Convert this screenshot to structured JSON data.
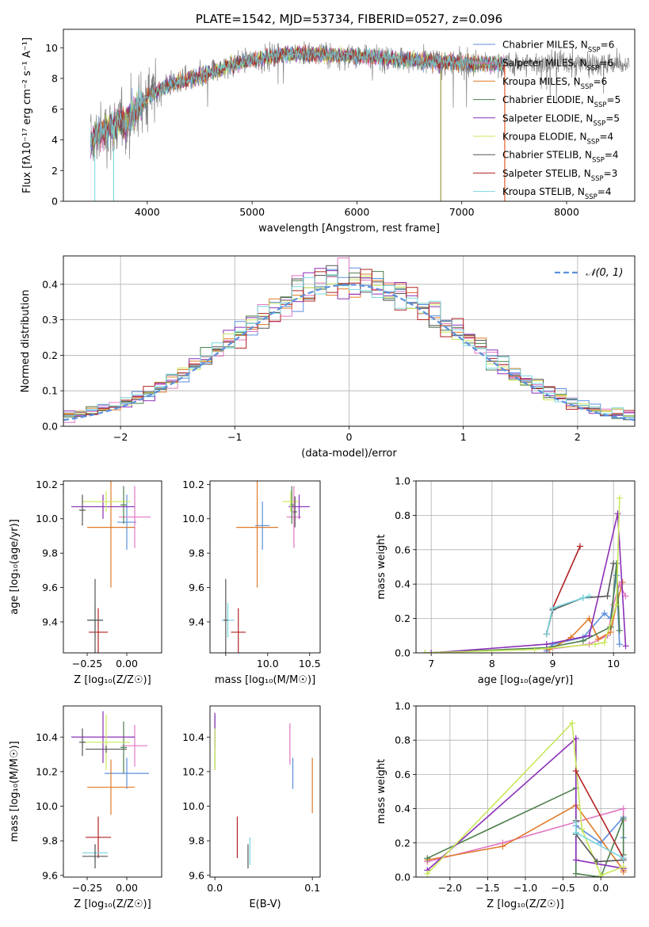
{
  "series_names": [
    "Chabrier MILES, N_SSP=6",
    "Salpeter MILES, N_SSP=6",
    "Kroupa MILES, N_SSP=6",
    "Chabrier ELODIE, N_SSP=5",
    "Salpeter ELODIE, N_SSP=5",
    "Kroupa ELODIE, N_SSP=4",
    "Chabrier STELIB, N_SSP=4",
    "Salpeter STELIB, N_SSP=3",
    "Kroupa STELIB, N_SSP=4"
  ],
  "series_colors": [
    "#5b8fdd",
    "#e377c2",
    "#e07b2a",
    "#4c7f4c",
    "#8b2fb8",
    "#c8e85a",
    "#555555",
    "#b22222",
    "#76d7e0"
  ],
  "chart_data": [
    {
      "id": "spectrum",
      "type": "line",
      "title": "PLATE=1542, MJD=53734, FIBERID=0527, z=0.096",
      "xlabel": "wavelength [Angstrom, rest frame]",
      "ylabel": "Flux [fλ10⁻¹⁷ erg cm⁻² s⁻¹ A⁻¹]",
      "xlim": [
        3200,
        8650
      ],
      "ylim": [
        0,
        11.2
      ],
      "xticks": [
        4000,
        5000,
        6000,
        7000,
        8000
      ],
      "yticks": [
        0,
        2,
        4,
        6,
        8,
        10
      ],
      "legend": [
        "Chabrier MILES, N",
        "Salpeter MILES, N",
        "Kroupa MILES, N",
        "Chabrier ELODIE, N",
        "Salpeter ELODIE, N",
        "Kroupa ELODIE, N",
        "Chabrier STELIB, N",
        "Salpeter STELIB, N",
        "Kroupa STELIB, N"
      ],
      "legend_sub": "SSP",
      "legend_tail": [
        "=6",
        "=6",
        "=6",
        "=5",
        "=5",
        "=4",
        "=4",
        "=3",
        "=4"
      ],
      "legend_placement": "top-right",
      "continuum": [
        [
          3450,
          3.8
        ],
        [
          3600,
          4.6
        ],
        [
          3800,
          5.3
        ],
        [
          4000,
          6.8
        ],
        [
          4200,
          7.6
        ],
        [
          4500,
          8.1
        ],
        [
          4800,
          8.9
        ],
        [
          5000,
          9.2
        ],
        [
          5300,
          9.6
        ],
        [
          5600,
          9.6
        ],
        [
          5900,
          9.5
        ],
        [
          6200,
          9.4
        ],
        [
          6500,
          9.2
        ],
        [
          6800,
          9.1
        ],
        [
          7100,
          9.0
        ],
        [
          7400,
          8.9
        ],
        [
          7700,
          9.0
        ],
        [
          8000,
          9.1
        ],
        [
          8300,
          9.0
        ],
        [
          8600,
          8.9
        ]
      ],
      "data_xrange": [
        3460,
        8600
      ],
      "model_xrange": [
        3460,
        7410
      ]
    },
    {
      "id": "residuals",
      "type": "histogram",
      "xlabel": "(data-model)/error",
      "ylabel": "Normed distribution",
      "xlim": [
        -2.5,
        2.5
      ],
      "ylim": [
        0,
        0.48
      ],
      "xticks": [
        -2,
        -1,
        0,
        1,
        2
      ],
      "xtick_labels": [
        "−2",
        "−1",
        "0",
        "1",
        "2"
      ],
      "yticks": [
        0,
        0.1,
        0.2,
        0.3,
        0.4
      ],
      "ytick_labels": [
        "0.0",
        "0.1",
        "0.2",
        "0.3",
        "0.4"
      ],
      "bin_width": 0.1,
      "bin_range": [
        -2.5,
        2.5
      ],
      "reference_curve": "Normal(0,1)",
      "reference_label": "𝒩(0, 1)",
      "legend_placement": "top-right"
    },
    {
      "id": "age_vs_Z",
      "type": "scatter",
      "xlabel": "Z [log₁₀(Z/Z☉)]",
      "ylabel": "age  [log₁₀(age/yr)]",
      "xlim": [
        -0.4,
        0.22
      ],
      "ylim": [
        9.22,
        10.22
      ],
      "xticks": [
        -0.25,
        0.0
      ],
      "xtick_labels": [
        "−0.25",
        "0.00"
      ],
      "yticks": [
        9.4,
        9.6,
        9.8,
        10.0,
        10.2
      ],
      "ytick_labels": [
        "9.4",
        "9.6",
        "9.8",
        "10.0",
        "10.2"
      ],
      "points": [
        {
          "s": 0,
          "x": 0.0,
          "xe": 0.06,
          "y": 9.98,
          "ye": 0.16
        },
        {
          "s": 1,
          "x": 0.05,
          "xe": 0.1,
          "y": 10.01,
          "ye": 0.18
        },
        {
          "s": 2,
          "x": -0.1,
          "xe": 0.15,
          "y": 9.95,
          "ye": 0.35
        },
        {
          "s": 3,
          "x": -0.02,
          "xe": 0.02,
          "y": 10.08,
          "ye": 0.11
        },
        {
          "s": 4,
          "x": -0.15,
          "xe": 0.2,
          "y": 10.07,
          "ye": 0.07
        },
        {
          "s": 5,
          "x": -0.13,
          "xe": 0.15,
          "y": 10.1,
          "ye": 0.06
        },
        {
          "s": 6,
          "x": -0.28,
          "xe": 0.02,
          "y": 10.05,
          "ye": 0.09
        },
        {
          "s": 7,
          "x": -0.18,
          "xe": 0.06,
          "y": 9.34,
          "ye": 0.14
        },
        {
          "s": 8,
          "x": -0.2,
          "xe": 0.05,
          "y": 9.41,
          "ye": 0.1
        },
        {
          "s": 6,
          "x": -0.2,
          "xe": 0.05,
          "y": 9.41,
          "ye": 0.24
        }
      ]
    },
    {
      "id": "age_vs_mass",
      "type": "scatter",
      "xlabel": "mass [log₁₀(M/M☉)]",
      "ylabel": "",
      "xlim": [
        9.55,
        10.6
      ],
      "ylim": [
        9.22,
        10.22
      ],
      "xticks": [
        9.7,
        10.1,
        10.5
      ],
      "xtick_labels": [
        "",
        "10.0",
        "10.5"
      ],
      "xticks_full": [
        10.0,
        10.5
      ],
      "yticks": [
        9.4,
        9.6,
        9.8,
        10.0,
        10.2
      ],
      "ytick_labels": [
        "9.4",
        "9.6",
        "9.8",
        "10.0",
        "10.2"
      ],
      "points": [
        {
          "s": 0,
          "x": 10.05,
          "xe": 0.07,
          "y": 9.96,
          "ye": 0.14
        },
        {
          "s": 1,
          "x": 10.35,
          "xe": 0.07,
          "y": 10.01,
          "ye": 0.18
        },
        {
          "s": 2,
          "x": 10.0,
          "xe": 0.2,
          "y": 9.95,
          "ye": 0.35
        },
        {
          "s": 3,
          "x": 10.33,
          "xe": 0.02,
          "y": 10.08,
          "ye": 0.11
        },
        {
          "s": 4,
          "x": 10.4,
          "xe": 0.1,
          "y": 10.07,
          "ye": 0.07
        },
        {
          "s": 5,
          "x": 10.32,
          "xe": 0.08,
          "y": 10.1,
          "ye": 0.06
        },
        {
          "s": 6,
          "x": 10.36,
          "xe": 0.02,
          "y": 10.04,
          "ye": 0.09
        },
        {
          "s": 7,
          "x": 9.82,
          "xe": 0.07,
          "y": 9.34,
          "ye": 0.14
        },
        {
          "s": 8,
          "x": 9.72,
          "xe": 0.06,
          "y": 9.41,
          "ye": 0.1
        },
        {
          "s": 6,
          "x": 9.7,
          "xe": 0.02,
          "y": 9.41,
          "ye": 0.24
        }
      ]
    },
    {
      "id": "weight_vs_age",
      "type": "line",
      "xlabel": "age  [log₁₀(age/yr)]",
      "ylabel": "mass weight",
      "xlim": [
        6.75,
        10.35
      ],
      "ylim": [
        0,
        1.0
      ],
      "xticks": [
        7,
        8,
        9,
        10
      ],
      "xtick_labels": [
        "7",
        "8",
        "9",
        "10"
      ],
      "yticks": [
        0,
        0.2,
        0.4,
        0.6,
        0.8,
        1.0
      ],
      "ytick_labels": [
        "0.0",
        "0.2",
        "0.4",
        "0.6",
        "0.8",
        "1.0"
      ],
      "series": [
        {
          "s": 0,
          "x": [
            8.9,
            9.0,
            9.5,
            9.85,
            9.95,
            10.05,
            10.1
          ],
          "y": [
            0.01,
            0.05,
            0.09,
            0.23,
            0.2,
            0.45,
            0.05
          ]
        },
        {
          "s": 1,
          "x": [
            8.9,
            9.6,
            9.9,
            10.0,
            10.1,
            10.2
          ],
          "y": [
            0.02,
            0.05,
            0.1,
            0.28,
            0.4,
            0.33
          ]
        },
        {
          "s": 2,
          "x": [
            8.95,
            9.3,
            9.6,
            9.75,
            9.95,
            10.05,
            10.15
          ],
          "y": [
            0.02,
            0.09,
            0.2,
            0.08,
            0.12,
            0.28,
            0.41
          ]
        },
        {
          "s": 3,
          "x": [
            6.9,
            8.9,
            9.5,
            9.95,
            10.05,
            10.1
          ],
          "y": [
            0.0,
            0.03,
            0.07,
            0.15,
            0.52,
            0.13
          ]
        },
        {
          "s": 4,
          "x": [
            7.0,
            8.9,
            9.6,
            10.07,
            10.2
          ],
          "y": [
            0.0,
            0.05,
            0.1,
            0.81,
            0.04
          ]
        },
        {
          "s": 5,
          "x": [
            6.9,
            8.7,
            9.7,
            9.85,
            10.05,
            10.1
          ],
          "y": [
            0.0,
            0.02,
            0.05,
            0.06,
            0.28,
            0.9
          ]
        },
        {
          "s": 6,
          "x": [
            8.9,
            9.0,
            9.5,
            9.9,
            10.0
          ],
          "y": [
            0.11,
            0.25,
            0.32,
            0.33,
            0.52
          ]
        },
        {
          "s": 7,
          "x": [
            8.9,
            9.0,
            9.45
          ],
          "y": [
            0.11,
            0.26,
            0.62
          ]
        },
        {
          "s": 8,
          "x": [
            8.9,
            9.0,
            9.5,
            9.6
          ],
          "y": [
            0.11,
            0.26,
            0.32,
            0.33
          ]
        }
      ]
    },
    {
      "id": "mass_vs_Z",
      "type": "scatter",
      "xlabel": "Z [log₁₀(Z/Z☉)]",
      "ylabel": "mass [log₁₀(M/M☉)]",
      "xlim": [
        -0.4,
        0.22
      ],
      "ylim": [
        9.59,
        10.58
      ],
      "xticks": [
        -0.25,
        0.0
      ],
      "xtick_labels": [
        "−0.25",
        "0.00"
      ],
      "yticks": [
        9.6,
        9.8,
        10.0,
        10.2,
        10.4
      ],
      "ytick_labels": [
        "9.6",
        "9.8",
        "10.0",
        "10.2",
        "10.4"
      ],
      "points": [
        {
          "s": 0,
          "x": 0.0,
          "xe": 0.14,
          "y": 10.19,
          "ye": 0.09
        },
        {
          "s": 1,
          "x": 0.05,
          "xe": 0.08,
          "y": 10.35,
          "ye": 0.12
        },
        {
          "s": 2,
          "x": -0.1,
          "xe": 0.15,
          "y": 10.11,
          "ye": 0.16
        },
        {
          "s": 3,
          "x": -0.02,
          "xe": 0.02,
          "y": 10.34,
          "ye": 0.15
        },
        {
          "s": 4,
          "x": -0.15,
          "xe": 0.2,
          "y": 10.4,
          "ye": 0.15
        },
        {
          "s": 5,
          "x": -0.13,
          "xe": 0.15,
          "y": 10.37,
          "ye": 0.16
        },
        {
          "s": 6,
          "x": -0.28,
          "xe": 0.02,
          "y": 10.37,
          "ye": 0.08
        },
        {
          "s": 6,
          "x": -0.13,
          "xe": 0.13,
          "y": 10.33,
          "ye": 0.02
        },
        {
          "s": 7,
          "x": -0.18,
          "xe": 0.08,
          "y": 9.82,
          "ye": 0.12
        },
        {
          "s": 8,
          "x": -0.2,
          "xe": 0.08,
          "y": 9.73,
          "ye": 0.05
        },
        {
          "s": 6,
          "x": -0.2,
          "xe": 0.08,
          "y": 9.71,
          "ye": 0.07
        }
      ]
    },
    {
      "id": "mass_vs_ebv",
      "type": "scatter",
      "xlabel": "E(B-V)",
      "ylabel": "",
      "xlim": [
        -0.005,
        0.108
      ],
      "ylim": [
        9.59,
        10.58
      ],
      "xticks": [
        0.0,
        0.1
      ],
      "xtick_labels": [
        "0.0",
        "0.1"
      ],
      "yticks": [
        9.6,
        9.8,
        10.0,
        10.2,
        10.4
      ],
      "ytick_labels": [
        "9.6",
        "9.8",
        "10.0",
        "10.2",
        "10.4"
      ],
      "points": [
        {
          "s": 0,
          "x": 0.08,
          "xe": 0.0,
          "y": 10.19,
          "ye": 0.09
        },
        {
          "s": 1,
          "x": 0.077,
          "xe": 0.0,
          "y": 10.36,
          "ye": 0.12
        },
        {
          "s": 2,
          "x": 0.1,
          "xe": 0.0,
          "y": 10.12,
          "ye": 0.16
        },
        {
          "s": 3,
          "x": 0.0,
          "xe": 0.0,
          "y": 10.37,
          "ye": 0.16
        },
        {
          "s": 4,
          "x": 0.0,
          "xe": 0.0,
          "y": 10.44,
          "ye": 0.1
        },
        {
          "s": 5,
          "x": 0.0,
          "xe": 0.0,
          "y": 10.33,
          "ye": 0.12
        },
        {
          "s": 7,
          "x": 0.023,
          "xe": 0.0,
          "y": 9.82,
          "ye": 0.12
        },
        {
          "s": 8,
          "x": 0.036,
          "xe": 0.0,
          "y": 9.74,
          "ye": 0.08
        },
        {
          "s": 6,
          "x": 0.034,
          "xe": 0.0,
          "y": 9.71,
          "ye": 0.07
        }
      ]
    },
    {
      "id": "weight_vs_Z",
      "type": "line",
      "xlabel": "Z [log₁₀(Z/Z☉)]",
      "ylabel": "mass weight",
      "xlim": [
        -2.45,
        0.45
      ],
      "ylim": [
        0,
        1.0
      ],
      "xticks": [
        -2.0,
        -1.5,
        -1.0,
        -0.5,
        0.0
      ],
      "xtick_labels": [
        "−2.0",
        "−1.5",
        "−1.0",
        "−0.5",
        "0.0"
      ],
      "yticks": [
        0,
        0.2,
        0.4,
        0.6,
        0.8,
        1.0
      ],
      "ytick_labels": [
        "0.0",
        "0.2",
        "0.4",
        "0.6",
        "0.8",
        "1.0"
      ],
      "series": [
        {
          "s": 0,
          "x": [
            -0.33,
            0.0,
            0.3,
            0.3
          ],
          "y": [
            0.3,
            0.2,
            0.35,
            0.23
          ]
        },
        {
          "s": 1,
          "x": [
            -2.3,
            -1.3,
            0.3,
            0.3
          ],
          "y": [
            0.09,
            0.2,
            0.4,
            0.33
          ]
        },
        {
          "s": 2,
          "x": [
            -2.3,
            -1.3,
            -0.33,
            0.3,
            0.3
          ],
          "y": [
            0.1,
            0.18,
            0.42,
            0.04,
            0.03
          ]
        },
        {
          "s": 3,
          "x": [
            -2.3,
            -0.33,
            -0.33,
            0.0,
            0.3,
            0.3
          ],
          "y": [
            0.11,
            0.52,
            0.02,
            0.0,
            0.34,
            0.13
          ]
        },
        {
          "s": 4,
          "x": [
            -2.3,
            -0.33,
            -0.33,
            0.3
          ],
          "y": [
            0.04,
            0.81,
            0.1,
            0.05
          ]
        },
        {
          "s": 5,
          "x": [
            -2.3,
            -0.38,
            -0.25,
            0.0,
            0.3
          ],
          "y": [
            0.02,
            0.9,
            0.28,
            0.01,
            0.06
          ]
        },
        {
          "s": 6,
          "x": [
            -0.33,
            -0.33,
            -0.05,
            0.3
          ],
          "y": [
            0.33,
            0.25,
            0.09,
            0.1
          ]
        },
        {
          "s": 7,
          "x": [
            -0.33,
            0.3
          ],
          "y": [
            0.62,
            0.11
          ]
        },
        {
          "s": 8,
          "x": [
            -0.33,
            -0.33,
            0.3
          ],
          "y": [
            0.32,
            0.26,
            0.11
          ]
        }
      ]
    }
  ]
}
